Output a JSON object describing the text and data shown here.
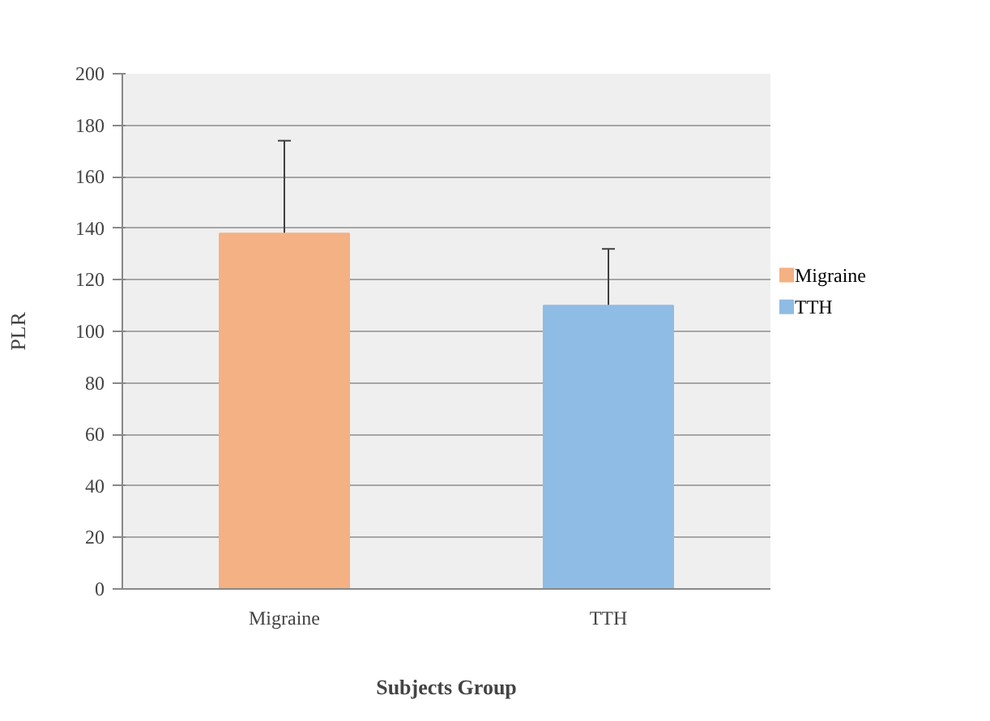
{
  "chart_data": {
    "type": "bar",
    "xlabel": "Subjects Group",
    "ylabel": "PLR",
    "categories": [
      "Migraine",
      "TTH"
    ],
    "series": [
      {
        "name": "Migraine",
        "color": "#f4b183",
        "values": [
          138,
          null
        ],
        "errors": [
          [
            137,
            174
          ],
          null
        ]
      },
      {
        "name": "TTH",
        "color": "#8fbce4",
        "values": [
          null,
          110
        ],
        "errors": [
          null,
          [
            109,
            132
          ]
        ]
      }
    ],
    "ylim": [
      0,
      200
    ],
    "yticks": [
      0,
      20,
      40,
      60,
      80,
      100,
      120,
      140,
      160,
      180,
      200
    ],
    "grid": "y",
    "legend": "right"
  }
}
